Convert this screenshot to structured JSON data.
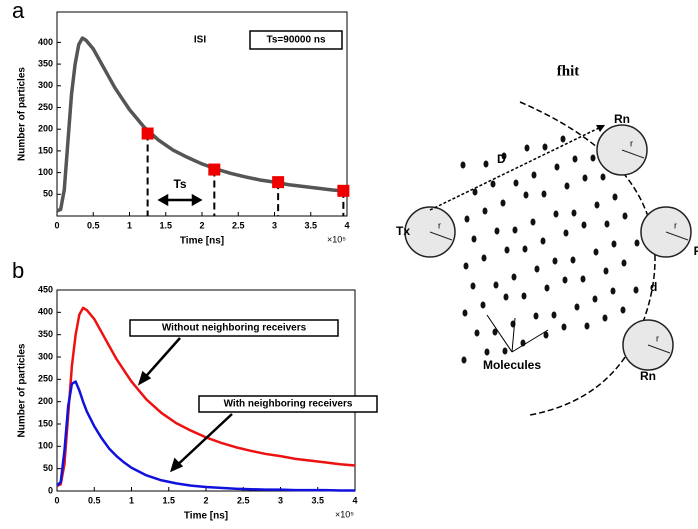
{
  "chart_data": [
    {
      "type": "line",
      "label": "a",
      "xlabel": "Time [ns]",
      "ylabel": "Number of particles",
      "x_multiplier": "×10⁵",
      "x": [
        0,
        0.05,
        0.1,
        0.15,
        0.2,
        0.25,
        0.3,
        0.35,
        0.4,
        0.5,
        0.6,
        0.7,
        0.8,
        0.9,
        1.0,
        1.2,
        1.4,
        1.6,
        1.8,
        2.0,
        2.2,
        2.4,
        2.6,
        2.8,
        3.0,
        3.2,
        3.4,
        3.6,
        3.8,
        4.0
      ],
      "series": [
        {
          "color": "#555555",
          "values": [
            12,
            15,
            60,
            170,
            280,
            350,
            395,
            410,
            405,
            385,
            355,
            325,
            295,
            270,
            245,
            205,
            175,
            152,
            135,
            120,
            108,
            98,
            90,
            83,
            78,
            72,
            68,
            64,
            60,
            57
          ]
        }
      ],
      "markers": {
        "color": "#ee0000",
        "x": [
          1.25,
          2.17,
          3.05,
          3.95
        ],
        "values": [
          190,
          107,
          78,
          58
        ]
      },
      "annotations": [
        "ISI",
        "Ts=90000 ns",
        "Ts"
      ],
      "xlim": [
        0,
        4
      ],
      "xticks": [
        0,
        0.5,
        1,
        1.5,
        2,
        2.5,
        3,
        3.5,
        4
      ],
      "ylim": [
        0,
        470
      ],
      "yticks": [
        50,
        100,
        150,
        200,
        250,
        300,
        350,
        400
      ]
    },
    {
      "type": "line",
      "label": "b",
      "xlabel": "Time [ns]",
      "ylabel": "Number of particles",
      "x_multiplier": "×10⁵",
      "x": [
        0,
        0.05,
        0.1,
        0.15,
        0.2,
        0.25,
        0.3,
        0.35,
        0.4,
        0.5,
        0.6,
        0.7,
        0.8,
        0.9,
        1.0,
        1.2,
        1.4,
        1.6,
        1.8,
        2.0,
        2.2,
        2.4,
        2.6,
        2.8,
        3.0,
        3.2,
        3.4,
        3.6,
        3.8,
        4.0
      ],
      "series": [
        {
          "color": "#ee1111",
          "values": [
            12,
            15,
            60,
            170,
            280,
            350,
            395,
            410,
            405,
            385,
            355,
            325,
            295,
            270,
            245,
            205,
            175,
            152,
            135,
            120,
            108,
            98,
            90,
            83,
            78,
            72,
            68,
            64,
            60,
            57
          ]
        },
        {
          "color": "#1111dd",
          "values": [
            12,
            20,
            90,
            190,
            240,
            245,
            225,
            200,
            178,
            145,
            118,
            95,
            78,
            64,
            52,
            35,
            24,
            17,
            12,
            9,
            7,
            5,
            4,
            3,
            3,
            2,
            2,
            2,
            1,
            1
          ]
        }
      ],
      "annotations": [
        "Without neighboring receivers",
        "With neighboring receivers"
      ],
      "xlim": [
        0,
        4
      ],
      "xticks": [
        0,
        0.5,
        1,
        1.5,
        2,
        2.5,
        3,
        3.5,
        4
      ],
      "ylim": [
        0,
        450
      ],
      "yticks": [
        0,
        50,
        100,
        150,
        200,
        250,
        300,
        350,
        400,
        450
      ]
    }
  ],
  "diagram": {
    "title": "fhit",
    "nodes": [
      {
        "label": "Tx"
      },
      {
        "label": "Rn"
      },
      {
        "label": "R"
      },
      {
        "label": "Rn"
      }
    ],
    "radius_label": "r",
    "distance_label": "D",
    "spacing_label": "d",
    "molecules_label": "Molecules"
  }
}
